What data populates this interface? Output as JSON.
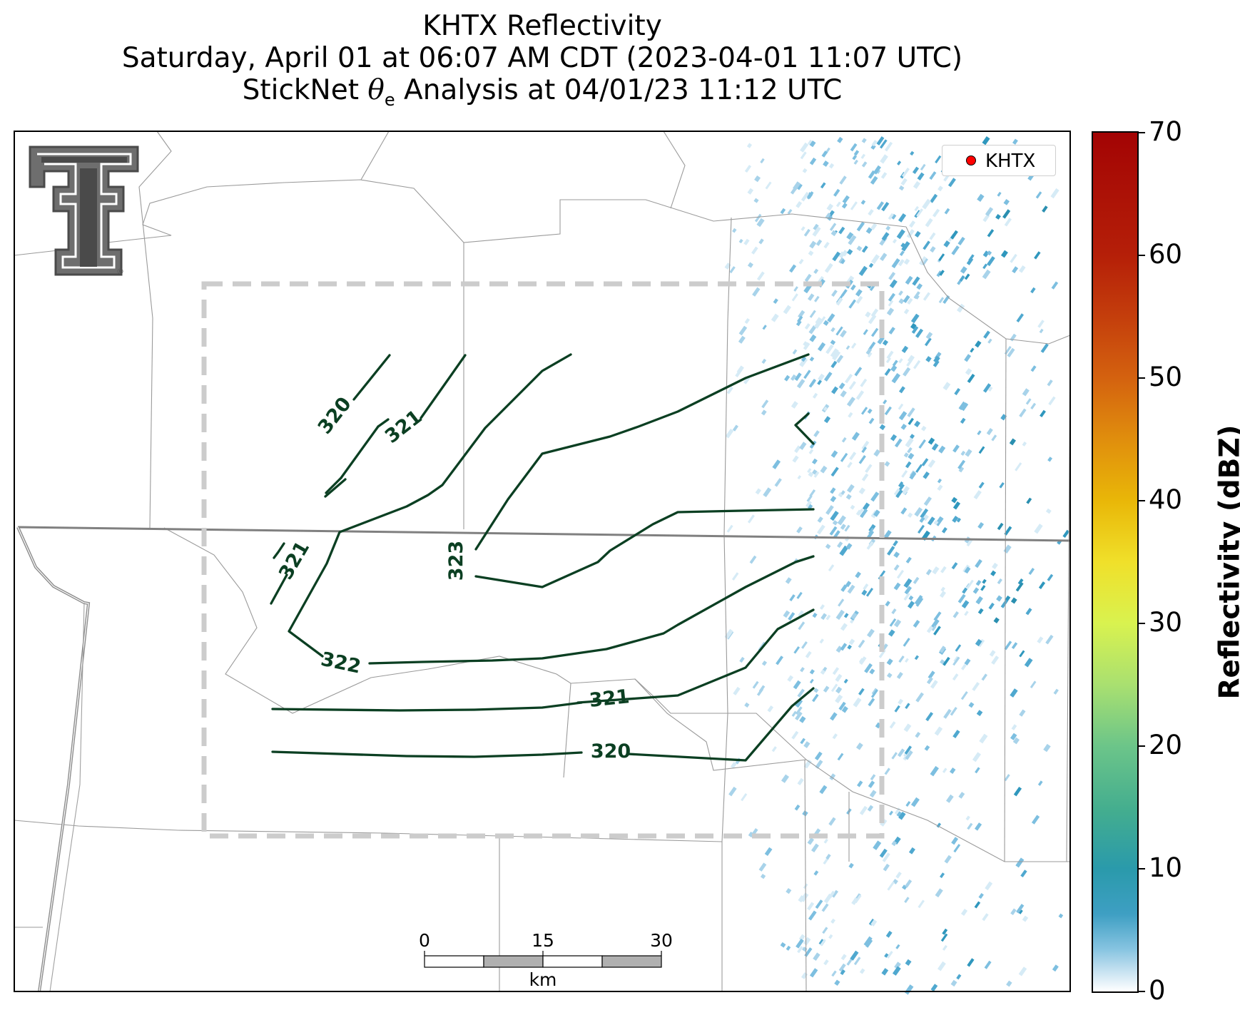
{
  "title": {
    "line1": "KHTX Reflectivity",
    "line2": "Saturday, April 01 at 06:07 AM CDT (2023-04-01 11:07 UTC)",
    "line3_pre": "StickNet ",
    "line3_theta": "θ",
    "line3_sub": "e",
    "line3_post": " Analysis at 04/01/23 11:12 UTC"
  },
  "legend": {
    "label": "KHTX",
    "marker_color": "#ff0000"
  },
  "scalebar": {
    "ticks": [
      "0",
      "15",
      "30"
    ],
    "unit": "km"
  },
  "colorbar": {
    "title": "Reflectivity (dBZ)",
    "min": 0,
    "max": 70,
    "ticks": [
      "0",
      "10",
      "20",
      "30",
      "40",
      "50",
      "60",
      "70"
    ],
    "colormap": "white-blue-green-yellow-orange-red"
  },
  "contours": {
    "variable": "theta_e",
    "color": "#0b3f22",
    "labels": [
      "320",
      "321",
      "321",
      "323",
      "322",
      "321",
      "320"
    ]
  },
  "logo": {
    "icon": "double-t-logo-icon",
    "mark": "®"
  },
  "colors": {
    "analysis_box": "#cccccc",
    "boundaries": "#9a9a9a",
    "state_line": "#808080"
  }
}
